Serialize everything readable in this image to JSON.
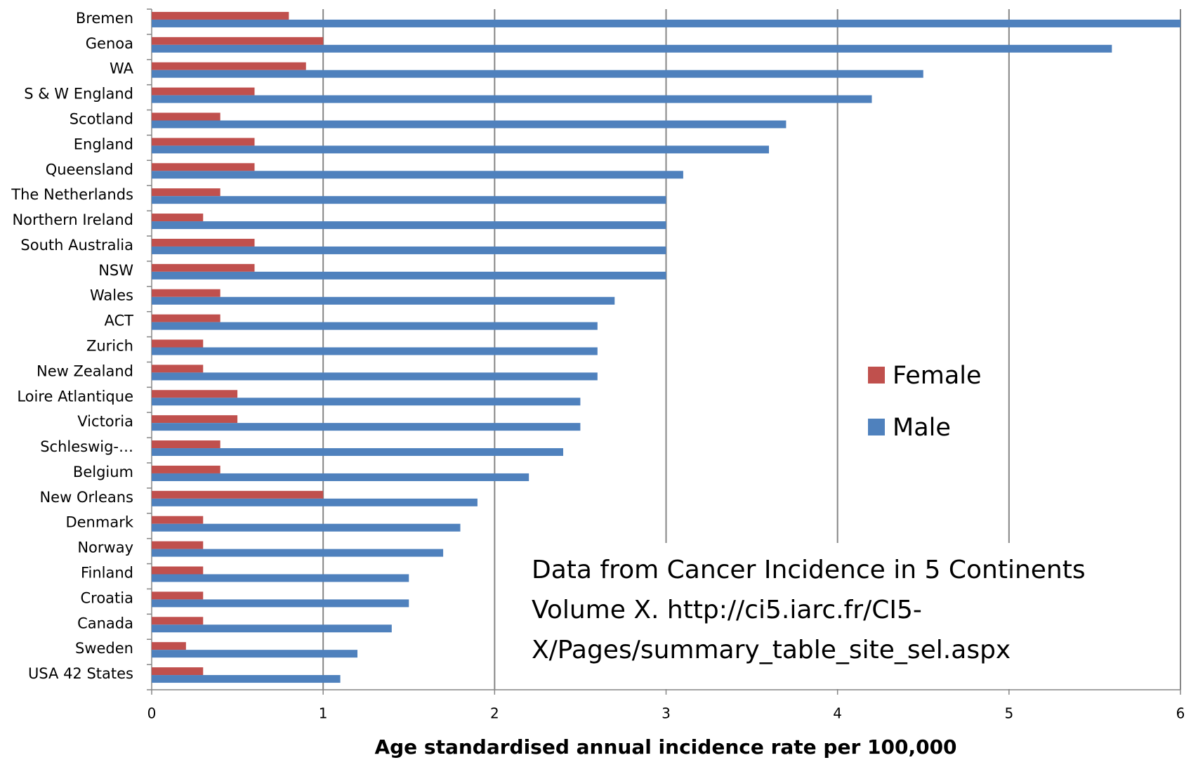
{
  "chart_data": {
    "type": "bar",
    "orientation": "horizontal",
    "x_label": "Age standardised annual incidence rate per 100,000",
    "categories": [
      "Bremen",
      "Genoa",
      "WA",
      "S & W England",
      "Scotland",
      "England",
      "Queensland",
      "The Netherlands",
      "Northern Ireland",
      "South Australia",
      "NSW",
      "Wales",
      "ACT",
      "Zurich",
      "New Zealand",
      "Loire Atlantique",
      "Victoria",
      "Schleswig-…",
      "Belgium",
      "New Orleans",
      "Denmark",
      "Norway",
      "Finland",
      "Croatia",
      "Canada",
      "Sweden",
      "USA 42 States"
    ],
    "series": [
      {
        "name": "Female",
        "color": "#c0504d",
        "values": [
          0.8,
          1.0,
          0.9,
          0.6,
          0.4,
          0.6,
          0.6,
          0.4,
          0.3,
          0.6,
          0.6,
          0.4,
          0.4,
          0.3,
          0.3,
          0.5,
          0.5,
          0.4,
          0.4,
          1.0,
          0.3,
          0.3,
          0.3,
          0.3,
          0.3,
          0.2,
          0.3
        ]
      },
      {
        "name": "Male",
        "color": "#4f81bd",
        "values": [
          6.0,
          5.6,
          4.5,
          4.2,
          3.7,
          3.6,
          3.1,
          3.0,
          3.0,
          3.0,
          3.0,
          2.7,
          2.6,
          2.6,
          2.6,
          2.5,
          2.5,
          2.4,
          2.2,
          1.9,
          1.8,
          1.7,
          1.5,
          1.5,
          1.4,
          1.2,
          1.1
        ]
      }
    ],
    "xlim": [
      0,
      6
    ],
    "xticks": [
      0,
      1,
      2,
      3,
      4,
      5,
      6
    ],
    "grid": true,
    "legend": "right",
    "annotation": [
      "Data from Cancer Incidence in 5 Continents",
      "Volume X. http://ci5.iarc.fr/CI5-",
      "X/Pages/summary_table_site_sel.aspx"
    ]
  }
}
